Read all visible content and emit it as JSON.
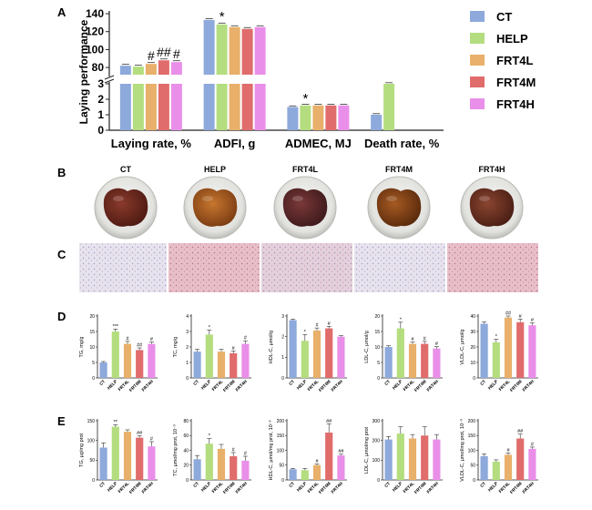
{
  "colors": {
    "CT": "#8EA9DB",
    "HELP": "#B4DD7F",
    "FRT4L": "#E8B06A",
    "FRT4M": "#E06C6C",
    "FRT4H": "#E98FE9"
  },
  "groups": [
    "CT",
    "HELP",
    "FRT4L",
    "FRT4M",
    "FRT4H"
  ],
  "panel_a": {
    "label": "A",
    "legend": [
      "CT",
      "HELP",
      "FRT4L",
      "FRT4M",
      "FRT4H"
    ]
  },
  "panel_b": {
    "label": "B",
    "photo_labels": [
      "CT",
      "HELP",
      "FRT4L",
      "FRT4M",
      "FRT4H"
    ]
  },
  "panel_c": {
    "label": "C"
  },
  "panel_d": {
    "label": "D"
  },
  "panel_e": {
    "label": "E"
  },
  "chart_data": [
    {
      "id": "A",
      "type": "bar",
      "ylabel": "Laying performance",
      "categories": [
        "Laying rate, %",
        "ADFI, g",
        "ADMEC, MJ",
        "Death rate, %"
      ],
      "series": [
        {
          "name": "CT",
          "values": [
            82,
            133,
            1.5,
            1.0
          ]
        },
        {
          "name": "HELP",
          "values": [
            81,
            128,
            1.6,
            3.0
          ]
        },
        {
          "name": "FRT4L",
          "values": [
            84,
            125,
            1.6,
            0
          ]
        },
        {
          "name": "FRT4M",
          "values": [
            88,
            123,
            1.6,
            0
          ]
        },
        {
          "name": "FRT4H",
          "values": [
            86,
            125,
            1.6,
            0
          ]
        }
      ],
      "upper_ticks": [
        "80",
        "100",
        "120",
        "140"
      ],
      "lower_ticks": [
        "0",
        "1",
        "2",
        "3"
      ],
      "annotations": [
        {
          "category": 0,
          "series": 2,
          "text": "#"
        },
        {
          "category": 0,
          "series": 3,
          "text": "##"
        },
        {
          "category": 0,
          "series": 4,
          "text": "#"
        },
        {
          "category": 1,
          "series": 1,
          "text": "*"
        },
        {
          "category": 2,
          "series": 1,
          "text": "*"
        }
      ]
    },
    {
      "id": "D1",
      "type": "bar",
      "ylabel": "TG, mg/g",
      "ylim": [
        0,
        20
      ],
      "yticks": [
        "0",
        "5",
        "10",
        "15",
        "20"
      ],
      "values": [
        5,
        15,
        11,
        9,
        11
      ],
      "errors": [
        0.3,
        0.8,
        0.8,
        0.7,
        0.6
      ],
      "marks": [
        "",
        "***",
        "#",
        "##",
        "#"
      ]
    },
    {
      "id": "D2",
      "type": "bar",
      "ylabel": "TC, mg/g",
      "ylim": [
        0,
        4
      ],
      "yticks": [
        "0",
        "1",
        "2",
        "3",
        "4"
      ],
      "values": [
        1.7,
        2.8,
        1.7,
        1.6,
        2.2
      ],
      "errors": [
        0.15,
        0.3,
        0.15,
        0.15,
        0.2
      ],
      "marks": [
        "",
        "*",
        "",
        "#",
        "#"
      ]
    },
    {
      "id": "D3",
      "type": "bar",
      "ylabel": "HDL-C, µmol/g",
      "ylim": [
        0,
        3
      ],
      "yticks": [
        "0",
        "1",
        "2",
        "3"
      ],
      "values": [
        2.8,
        1.8,
        2.3,
        2.4,
        2.0
      ],
      "errors": [
        0.05,
        0.3,
        0.12,
        0.1,
        0.05
      ],
      "marks": [
        "",
        "*",
        "#",
        "#",
        ""
      ]
    },
    {
      "id": "D4",
      "type": "bar",
      "ylabel": "LDL-C, µmol/g",
      "ylim": [
        0,
        20
      ],
      "yticks": [
        "0",
        "5",
        "10",
        "15",
        "20"
      ],
      "values": [
        10,
        16,
        11,
        11,
        9.5
      ],
      "errors": [
        0.4,
        2.0,
        0.6,
        0.8,
        0.6
      ],
      "marks": [
        "",
        "*",
        "#",
        "#",
        "#"
      ]
    },
    {
      "id": "D5",
      "type": "bar",
      "ylabel": "VLDL-C, µmol/g",
      "ylim": [
        0,
        40
      ],
      "yticks": [
        "0",
        "10",
        "20",
        "30",
        "40"
      ],
      "values": [
        35,
        23,
        39,
        36,
        34
      ],
      "errors": [
        1.2,
        2.0,
        1.0,
        2.0,
        1.5
      ],
      "marks": [
        "",
        "*",
        "##",
        "#",
        "#"
      ]
    },
    {
      "id": "E1",
      "type": "bar",
      "ylabel": "TG, µg/mg prot",
      "ylim": [
        0,
        150
      ],
      "yticks": [
        "0",
        "50",
        "100",
        "150"
      ],
      "values": [
        82,
        135,
        122,
        107,
        85
      ],
      "errors": [
        12,
        5,
        5,
        5,
        12
      ],
      "marks": [
        "",
        "**",
        "",
        "##",
        "#"
      ]
    },
    {
      "id": "E2",
      "type": "bar",
      "ylabel": "TC, µmol/mg prot, 10⁻³",
      "ylim": [
        0,
        80
      ],
      "yticks": [
        "0",
        "20",
        "40",
        "60",
        "80"
      ],
      "values": [
        28,
        49,
        42,
        32,
        26
      ],
      "errors": [
        5,
        7,
        6,
        5,
        6
      ],
      "marks": [
        "",
        "*",
        "",
        "#",
        "#"
      ]
    },
    {
      "id": "E3",
      "type": "bar",
      "ylabel": "HDL-C, µmol/mg prot, 10⁻³",
      "ylim": [
        0,
        200
      ],
      "yticks": [
        "0",
        "50",
        "100",
        "150",
        "200"
      ],
      "values": [
        36,
        33,
        50,
        160,
        83
      ],
      "errors": [
        3,
        6,
        4,
        30,
        4
      ],
      "marks": [
        "",
        "",
        "#",
        "##",
        "##"
      ]
    },
    {
      "id": "E4",
      "type": "bar",
      "ylabel": "LDL-C, µmol/mg prot",
      "ylim": [
        0,
        300
      ],
      "yticks": [
        "0",
        "100",
        "200",
        "300"
      ],
      "values": [
        205,
        235,
        210,
        225,
        205
      ],
      "errors": [
        15,
        35,
        20,
        45,
        25
      ],
      "marks": [
        "",
        "",
        "",
        "",
        ""
      ]
    },
    {
      "id": "E5",
      "type": "bar",
      "ylabel": "VLDL-C, µmol/mg prot, 10⁻³",
      "ylim": [
        0,
        200
      ],
      "yticks": [
        "0",
        "50",
        "100",
        "150",
        "200"
      ],
      "values": [
        80,
        62,
        85,
        140,
        105
      ],
      "errors": [
        8,
        6,
        6,
        15,
        6
      ],
      "marks": [
        "",
        "",
        "#",
        "##",
        "#"
      ]
    }
  ]
}
